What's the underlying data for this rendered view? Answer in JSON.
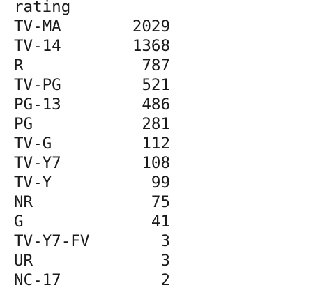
{
  "output": {
    "header": "rating",
    "rows": [
      {
        "label": "TV-MA",
        "count": "2029"
      },
      {
        "label": "TV-14",
        "count": "1368"
      },
      {
        "label": "R",
        "count": "787"
      },
      {
        "label": "TV-PG",
        "count": "521"
      },
      {
        "label": "PG-13",
        "count": "486"
      },
      {
        "label": "PG",
        "count": "281"
      },
      {
        "label": "TV-G",
        "count": "112"
      },
      {
        "label": "TV-Y7",
        "count": "108"
      },
      {
        "label": "TV-Y",
        "count": "99"
      },
      {
        "label": "NR",
        "count": "75"
      },
      {
        "label": "G",
        "count": "41"
      },
      {
        "label": "TV-Y7-FV",
        "count": "3"
      },
      {
        "label": "UR",
        "count": "3"
      },
      {
        "label": "NC-17",
        "count": "2"
      }
    ]
  }
}
